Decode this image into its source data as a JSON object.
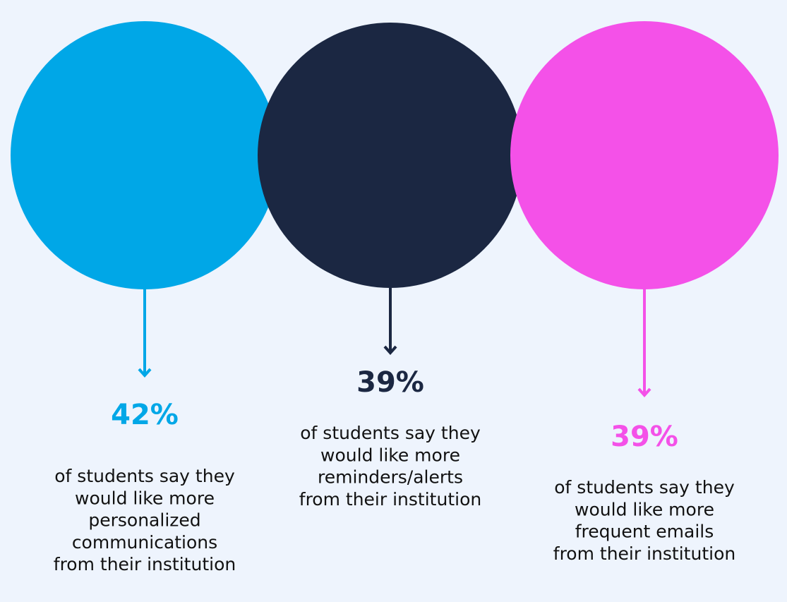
{
  "items": [
    {
      "stat": "42%",
      "color": "#00a7e7",
      "lines": [
        "of students say they",
        "would like more",
        "personalized",
        "communications",
        "from their institution"
      ]
    },
    {
      "stat": "39%",
      "color": "#1b2742",
      "lines": [
        "of students say they",
        "would like more",
        "reminders/alerts",
        "from their institution"
      ]
    },
    {
      "stat": "39%",
      "color": "#f451e8",
      "lines": [
        "of students say they",
        "would like more",
        "frequent emails",
        "from their institution"
      ]
    }
  ]
}
